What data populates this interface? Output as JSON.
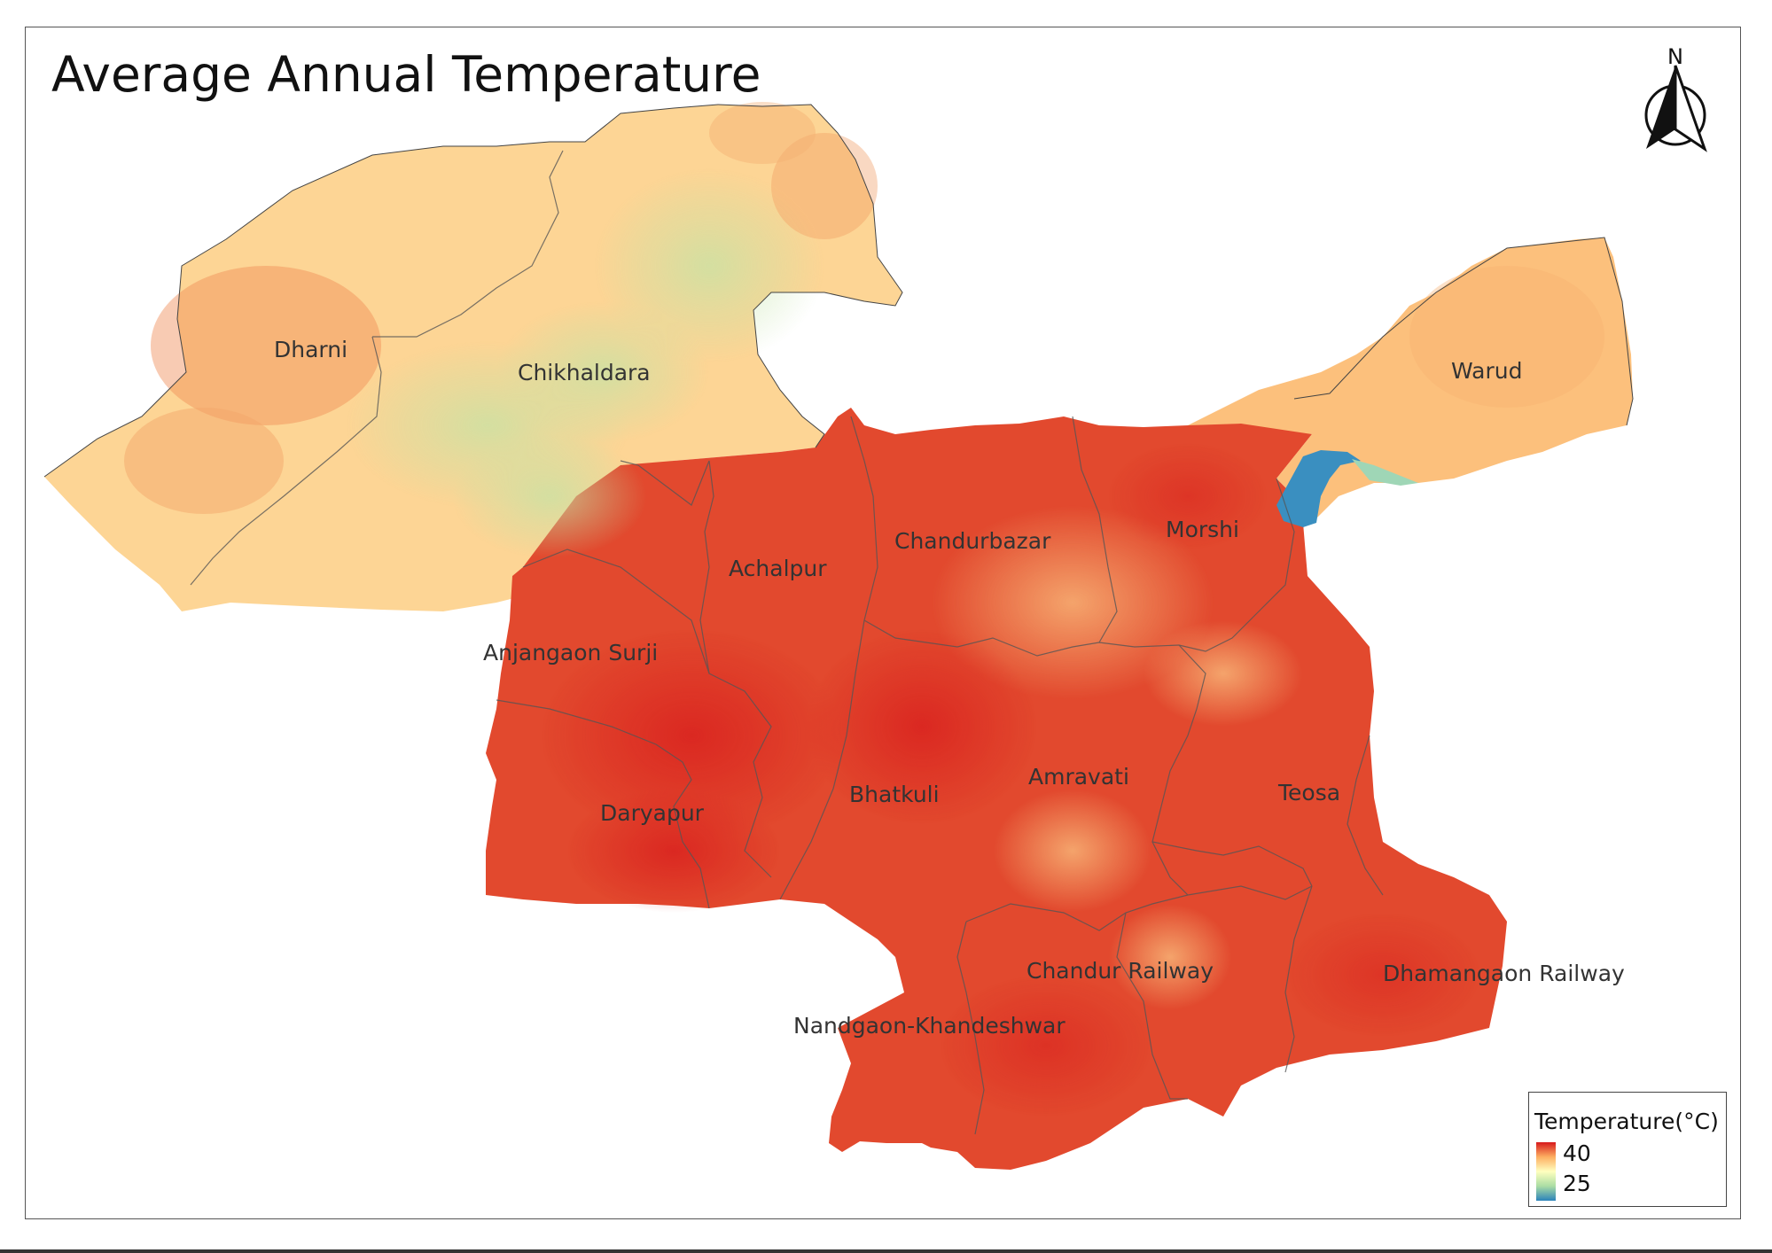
{
  "title": "Average Annual Temperature",
  "north_label": "N",
  "legend": {
    "title": "Temperature(°C)",
    "max_label": "40",
    "min_label": "25",
    "colors": [
      "#d7191c",
      "#fdae61",
      "#ffffbf",
      "#abdda4",
      "#2b83ba"
    ]
  },
  "places": [
    "Dharni",
    "Chikhaldara",
    "Warud",
    "Morshi",
    "Chandurbazar",
    "Achalpur",
    "Anjangaon Surji",
    "Daryapur",
    "Bhatkuli",
    "Amravati",
    "Teosa",
    "Chandur Railway",
    "Dhamangaon Railway",
    "Nandgaon-Khandeshwar"
  ]
}
